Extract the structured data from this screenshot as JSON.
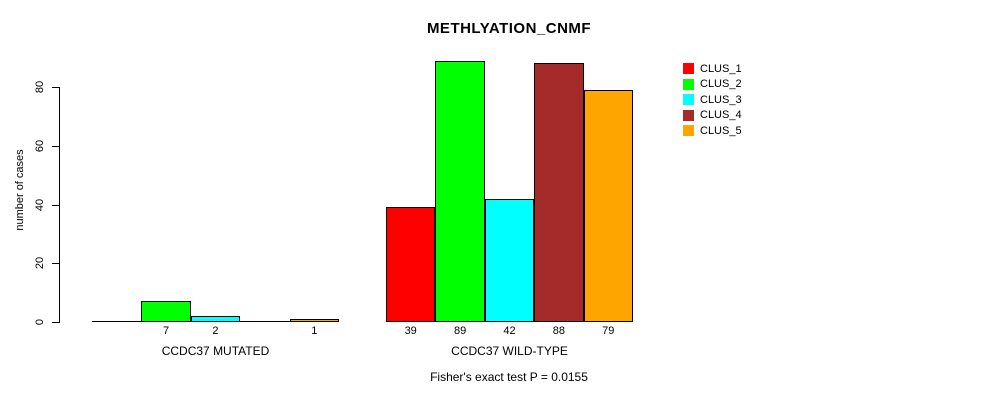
{
  "chart_data": {
    "type": "bar",
    "title": "METHLYATION_CNMF",
    "ylabel": "number of cases",
    "xlabel": "",
    "ylim": [
      0,
      80
    ],
    "yticks": [
      0,
      20,
      40,
      60,
      80
    ],
    "grid": false,
    "legend_position": "right",
    "legend": [
      {
        "label": "CLUS_1",
        "color": "#FF0000"
      },
      {
        "label": "CLUS_2",
        "color": "#00FF00"
      },
      {
        "label": "CLUS_3",
        "color": "#00FFFF"
      },
      {
        "label": "CLUS_4",
        "color": "#A52A2A"
      },
      {
        "label": "CLUS_5",
        "color": "#FFA500"
      }
    ],
    "groups": [
      {
        "label": "CCDC37 MUTATED",
        "values": [
          0,
          7,
          2,
          0,
          1
        ],
        "bar_labels": [
          "",
          "7",
          "2",
          "",
          "1"
        ]
      },
      {
        "label": "CCDC37 WILD-TYPE",
        "values": [
          39,
          89,
          42,
          88,
          79
        ],
        "bar_labels": [
          "39",
          "89",
          "42",
          "88",
          "79"
        ]
      }
    ],
    "annotation": "Fisher's exact test P = 0.0155"
  }
}
